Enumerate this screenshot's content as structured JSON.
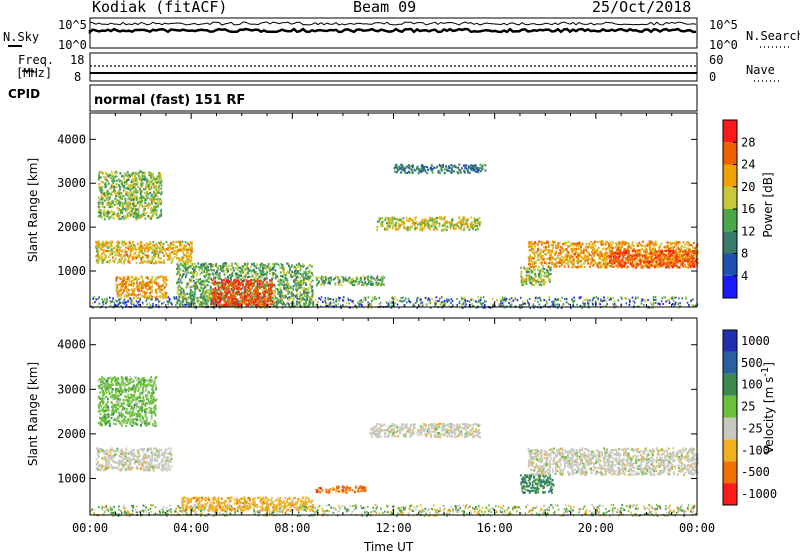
{
  "header": {
    "site": "Kodiak (fitACF)",
    "beam": "Beam 09",
    "date": "25/Oct/2018"
  },
  "nsky": {
    "label": "N.Sky",
    "ticks": [
      "10^5",
      "10^0"
    ]
  },
  "nsearch": {
    "label": "N.Search",
    "ticks": [
      "10^5",
      "10^0"
    ]
  },
  "freq": {
    "label_line1": "Freq.",
    "label_line2": "[MHz]",
    "ticks": [
      "18",
      "8"
    ]
  },
  "nave": {
    "label": "Nave",
    "ticks": [
      "60",
      "0"
    ]
  },
  "cpid": {
    "label": "CPID",
    "mode": "normal (fast) 151 RF"
  },
  "xaxis": {
    "title": "Time UT",
    "tick_labels": [
      "00:00",
      "04:00",
      "08:00",
      "12:00",
      "16:00",
      "20:00",
      "00:00"
    ]
  },
  "chart_data": [
    {
      "type": "heatmap",
      "title": "",
      "xlabel": "Time UT",
      "ylabel": "Slant Range [km]",
      "x_ticks": [
        "00:00",
        "04:00",
        "08:00",
        "12:00",
        "16:00",
        "20:00",
        "00:00"
      ],
      "y_ticks": [
        1000,
        2000,
        3000,
        4000
      ],
      "ylim": [
        180,
        4600
      ],
      "colorbar": {
        "label": "Power [dB]",
        "ticks": [
          4,
          8,
          12,
          16,
          20,
          24,
          28
        ],
        "range": [
          0,
          32
        ],
        "colors": [
          "#1a1aff",
          "#2050b0",
          "#3a7a6a",
          "#4aa84a",
          "#c8c83a",
          "#f0a000",
          "#f06000",
          "#ff1a1a"
        ]
      },
      "regions": [
        {
          "t0": 0.2,
          "t1": 4.0,
          "r0": 1200,
          "r1": 1700,
          "value": 20
        },
        {
          "t0": 0.3,
          "t1": 2.8,
          "r0": 2200,
          "r1": 3300,
          "value": 16
        },
        {
          "t0": 1.0,
          "t1": 3.0,
          "r0": 400,
          "r1": 900,
          "value": 22
        },
        {
          "t0": 3.4,
          "t1": 8.8,
          "r0": 200,
          "r1": 1200,
          "value": 14
        },
        {
          "t0": 4.8,
          "t1": 7.2,
          "r0": 220,
          "r1": 820,
          "value": 28
        },
        {
          "t0": 8.9,
          "t1": 11.6,
          "r0": 700,
          "r1": 900,
          "value": 14
        },
        {
          "t0": 11.3,
          "t1": 15.4,
          "r0": 1950,
          "r1": 2250,
          "value": 18
        },
        {
          "t0": 12.0,
          "t1": 15.6,
          "r0": 3250,
          "r1": 3450,
          "value": 10
        },
        {
          "t0": 17.3,
          "t1": 24.0,
          "r0": 1100,
          "r1": 1700,
          "value": 22
        },
        {
          "t0": 20.5,
          "t1": 24.0,
          "r0": 1100,
          "r1": 1500,
          "value": 27
        },
        {
          "t0": 17.0,
          "t1": 18.2,
          "r0": 700,
          "r1": 1100,
          "value": 16
        }
      ]
    },
    {
      "type": "heatmap",
      "title": "",
      "xlabel": "Time UT",
      "ylabel": "Slant Range [km]",
      "x_ticks": [
        "00:00",
        "04:00",
        "08:00",
        "12:00",
        "16:00",
        "20:00",
        "00:00"
      ],
      "y_ticks": [
        1000,
        2000,
        3000,
        4000
      ],
      "ylim": [
        180,
        4600
      ],
      "colorbar": {
        "label": "Velocity [m s^-1]",
        "ticks": [
          "1000",
          "500",
          "100",
          "25",
          "-25",
          "-100",
          "-500",
          "-1000"
        ],
        "colors": [
          "#2030b0",
          "#2a60a0",
          "#3a8a50",
          "#6ac03a",
          "#c8c8c0",
          "#f0b020",
          "#f07000",
          "#ff1a1a"
        ]
      },
      "regions": [
        {
          "t0": 0.2,
          "t1": 3.2,
          "r0": 1200,
          "r1": 1700,
          "value": "-25"
        },
        {
          "t0": 0.3,
          "t1": 2.6,
          "r0": 2200,
          "r1": 3300,
          "value": "25"
        },
        {
          "t0": 3.6,
          "t1": 8.8,
          "r0": 300,
          "r1": 600,
          "value": "-100"
        },
        {
          "t0": 8.9,
          "t1": 10.9,
          "r0": 700,
          "r1": 850,
          "value": "-500"
        },
        {
          "t0": 11.0,
          "t1": 15.4,
          "r0": 1950,
          "r1": 2250,
          "value": "-25"
        },
        {
          "t0": 17.3,
          "t1": 24.0,
          "r0": 1100,
          "r1": 1700,
          "value": "-25"
        },
        {
          "t0": 17.0,
          "t1": 18.3,
          "r0": 700,
          "r1": 1100,
          "value": "100"
        }
      ]
    }
  ]
}
